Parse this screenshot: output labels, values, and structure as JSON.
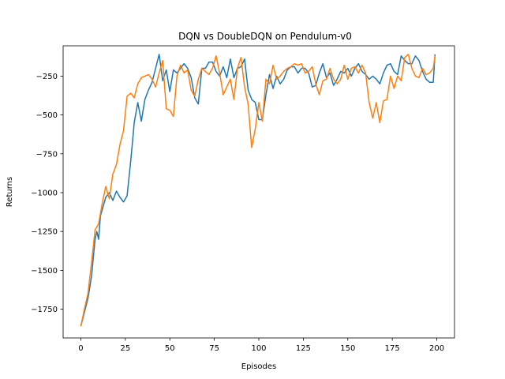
{
  "chart_data": {
    "type": "line",
    "title": "DQN vs DoubleDQN on Pendulum-v0",
    "xlabel": "Episodes",
    "ylabel": "Returns",
    "xlim": [
      -9.95,
      209.95
    ],
    "ylim": [
      -1935,
      -55
    ],
    "xticks": [
      0,
      25,
      50,
      75,
      100,
      125,
      150,
      175,
      200
    ],
    "yticks": [
      -1750,
      -1500,
      -1250,
      -1000,
      -750,
      -500,
      -250
    ],
    "grid": false,
    "legend": "none",
    "series": [
      {
        "color": "#1f77b4",
        "x": [
          0,
          2,
          4,
          6,
          8,
          9,
          10,
          11,
          12,
          14,
          16,
          18,
          20,
          22,
          24,
          26,
          28,
          30,
          32,
          34,
          36,
          38,
          40,
          42,
          44,
          46,
          48,
          50,
          52,
          54,
          56,
          58,
          60,
          62,
          64,
          66,
          68,
          70,
          72,
          74,
          76,
          78,
          80,
          82,
          84,
          86,
          88,
          90,
          92,
          94,
          96,
          98,
          100,
          102,
          104,
          106,
          108,
          110,
          112,
          114,
          116,
          118,
          120,
          122,
          124,
          126,
          128,
          130,
          132,
          134,
          136,
          138,
          140,
          142,
          144,
          146,
          148,
          150,
          152,
          154,
          156,
          158,
          160,
          162,
          164,
          166,
          168,
          170,
          172,
          174,
          176,
          178,
          180,
          182,
          184,
          186,
          188,
          190,
          192,
          194,
          196,
          198,
          199
        ],
        "y": [
          -1860,
          -1770,
          -1680,
          -1540,
          -1300,
          -1250,
          -1300,
          -1150,
          -1110,
          -1030,
          -1000,
          -1050,
          -990,
          -1030,
          -1060,
          -1020,
          -800,
          -550,
          -420,
          -540,
          -400,
          -340,
          -290,
          -200,
          -110,
          -280,
          -210,
          -350,
          -210,
          -230,
          -200,
          -170,
          -200,
          -260,
          -390,
          -430,
          -200,
          -200,
          -160,
          -160,
          -220,
          -250,
          -190,
          -260,
          -140,
          -260,
          -200,
          -190,
          -140,
          -340,
          -400,
          -420,
          -530,
          -530,
          -370,
          -240,
          -330,
          -250,
          -300,
          -270,
          -210,
          -190,
          -190,
          -230,
          -200,
          -200,
          -230,
          -320,
          -310,
          -230,
          -170,
          -260,
          -230,
          -310,
          -270,
          -220,
          -230,
          -200,
          -250,
          -200,
          -170,
          -220,
          -240,
          -270,
          -250,
          -270,
          -300,
          -230,
          -180,
          -170,
          -220,
          -240,
          -120,
          -150,
          -170,
          -170,
          -120,
          -150,
          -220,
          -270,
          -290,
          -290,
          -110
        ]
      },
      {
        "color": "#ff7f0e",
        "x": [
          0,
          2,
          4,
          6,
          8,
          10,
          12,
          14,
          16,
          18,
          20,
          22,
          24,
          26,
          28,
          30,
          32,
          34,
          36,
          38,
          40,
          42,
          44,
          46,
          48,
          50,
          52,
          54,
          56,
          58,
          60,
          62,
          64,
          66,
          68,
          70,
          72,
          74,
          76,
          78,
          80,
          82,
          84,
          86,
          88,
          90,
          92,
          94,
          96,
          98,
          100,
          102,
          104,
          106,
          108,
          110,
          112,
          114,
          116,
          118,
          120,
          122,
          124,
          126,
          128,
          130,
          132,
          134,
          136,
          138,
          140,
          142,
          144,
          146,
          148,
          150,
          152,
          154,
          156,
          158,
          160,
          162,
          164,
          166,
          168,
          170,
          172,
          174,
          176,
          178,
          180,
          182,
          184,
          186,
          188,
          190,
          192,
          194,
          196,
          198,
          199
        ],
        "y": [
          -1860,
          -1750,
          -1650,
          -1450,
          -1240,
          -1200,
          -1070,
          -960,
          -1040,
          -880,
          -820,
          -690,
          -600,
          -380,
          -360,
          -390,
          -300,
          -260,
          -250,
          -240,
          -270,
          -320,
          -230,
          -150,
          -460,
          -470,
          -510,
          -250,
          -180,
          -230,
          -210,
          -340,
          -380,
          -270,
          -200,
          -220,
          -240,
          -200,
          -120,
          -230,
          -370,
          -320,
          -270,
          -400,
          -200,
          -130,
          -320,
          -430,
          -710,
          -590,
          -420,
          -540,
          -270,
          -300,
          -180,
          -270,
          -250,
          -220,
          -200,
          -190,
          -170,
          -180,
          -170,
          -230,
          -220,
          -190,
          -300,
          -370,
          -280,
          -270,
          -200,
          -270,
          -300,
          -270,
          -180,
          -270,
          -200,
          -190,
          -230,
          -180,
          -230,
          -420,
          -520,
          -420,
          -550,
          -410,
          -400,
          -250,
          -330,
          -250,
          -280,
          -130,
          -110,
          -200,
          -250,
          -260,
          -200,
          -240,
          -230,
          -200,
          -120
        ]
      }
    ]
  }
}
